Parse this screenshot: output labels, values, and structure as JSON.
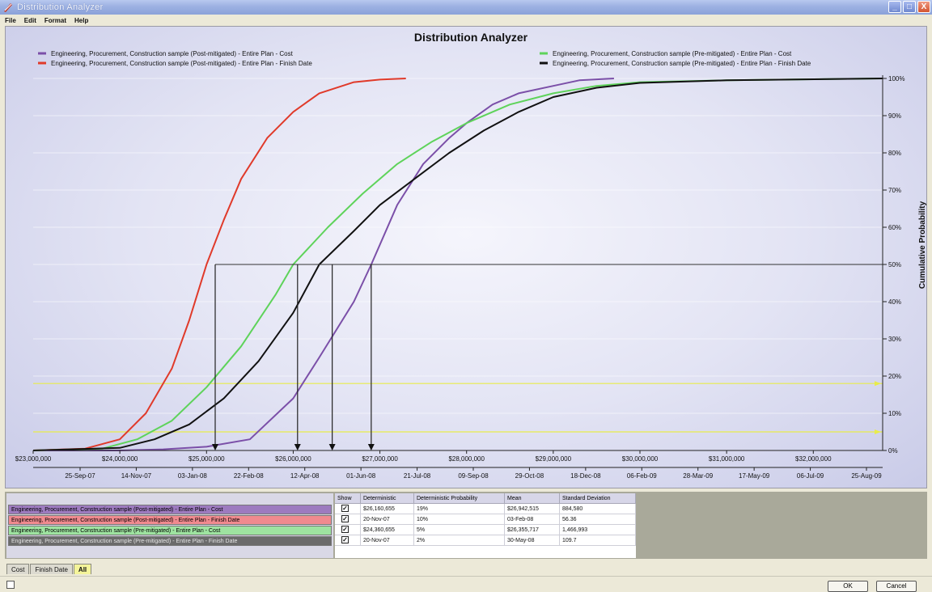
{
  "window": {
    "title": "Distribution Analyzer",
    "buttons": {
      "minimize": "_",
      "maximize": "□",
      "close": "X"
    }
  },
  "menu": [
    "File",
    "Edit",
    "Format",
    "Help"
  ],
  "chart_data": {
    "type": "line",
    "title": "Distribution Analyzer",
    "ylabel": "Cumulative Probability",
    "ylim": [
      0,
      100
    ],
    "y_ticks": [
      "0%",
      "10%",
      "20%",
      "30%",
      "40%",
      "50%",
      "60%",
      "70%",
      "80%",
      "90%",
      "100%"
    ],
    "cost_axis": {
      "range": [
        23000000,
        32800000
      ],
      "ticks": [
        "$23,000,000",
        "$24,000,000",
        "$25,000,000",
        "$26,000,000",
        "$27,000,000",
        "$28,000,000",
        "$29,000,000",
        "$30,000,000",
        "$31,000,000",
        "$32,000,000"
      ]
    },
    "date_axis": {
      "ticks": [
        "25-Sep-07",
        "14-Nov-07",
        "03-Jan-08",
        "22-Feb-08",
        "12-Apr-08",
        "01-Jun-08",
        "21-Jul-08",
        "09-Sep-08",
        "29-Oct-08",
        "18-Dec-08",
        "06-Feb-09",
        "28-Mar-09",
        "17-May-09",
        "06-Jul-09",
        "25-Aug-09"
      ]
    },
    "legend_position": "top",
    "series": [
      {
        "name": "Engineering, Procurement, Construction sample (Post-mitigated) - Entire Plan - Cost",
        "color": "#7b4fa8",
        "x": [
          23000000,
          24000000,
          24500000,
          25000000,
          25500000,
          26000000,
          26300000,
          26700000,
          26900000,
          27200000,
          27500000,
          27800000,
          28000000,
          28300000,
          28600000,
          29000000,
          29300000,
          29700000
        ],
        "y": [
          0,
          0,
          0.3,
          1,
          3,
          14,
          25,
          40,
          50,
          66,
          77,
          84,
          88,
          93,
          96,
          98,
          99.5,
          100
        ]
      },
      {
        "name": "Engineering, Procurement, Construction sample (Post-mitigated) - Entire Plan - Finish Date",
        "color": "#e03a2a",
        "x": [
          23000000,
          23600000,
          24000000,
          24300000,
          24600000,
          24800000,
          25000000,
          25200000,
          25400000,
          25700000,
          26000000,
          26300000,
          26700000,
          27000000,
          27300000
        ],
        "y": [
          0,
          0.5,
          3,
          10,
          22,
          35,
          50,
          62,
          73,
          84,
          91,
          96,
          99,
          99.7,
          100
        ]
      },
      {
        "name": "Engineering, Procurement, Construction sample (Pre-mitigated) - Entire Plan - Cost",
        "color": "#5ed35a",
        "x": [
          23000000,
          23800000,
          24200000,
          24600000,
          25000000,
          25400000,
          25800000,
          26000000,
          26400000,
          26800000,
          27200000,
          27600000,
          28000000,
          28500000,
          29000000,
          29500000,
          30000000,
          31000000,
          32800000
        ],
        "y": [
          0,
          0.5,
          3,
          8,
          17,
          28,
          42,
          50,
          60,
          69,
          77,
          83,
          88,
          93,
          96,
          98,
          99,
          99.5,
          100
        ]
      },
      {
        "name": "Engineering, Procurement, Construction sample (Pre-mitigated) - Entire Plan - Finish Date",
        "color": "#111111",
        "x": [
          23000000,
          24000000,
          24400000,
          24800000,
          25200000,
          25600000,
          26000000,
          26300000,
          26700000,
          27000000,
          27400000,
          27800000,
          28200000,
          28600000,
          29000000,
          29500000,
          30000000,
          31000000,
          32800000
        ],
        "y": [
          0,
          0.7,
          3,
          7,
          14,
          24,
          37,
          50,
          59,
          66,
          73,
          80,
          86,
          91,
          95,
          97.5,
          98.8,
          99.5,
          100
        ]
      }
    ],
    "reference_lines": {
      "percentile": 50,
      "drop_x": [
        25100000,
        26050000,
        26450000,
        26900000
      ],
      "guide_levels": [
        5,
        18
      ]
    }
  },
  "table": {
    "headers": [
      "Show",
      "Deterministic",
      "Deterministic Probability",
      "Mean",
      "Standard Deviation"
    ],
    "rows": [
      {
        "label": "Engineering, Procurement, Construction sample (Post-mitigated) - Entire Plan - Cost",
        "color": "#9d7bbf",
        "show": "✓",
        "deterministic": "$26,160,655",
        "det_probability": "19%",
        "mean": "$26,942,515",
        "std_dev": "884,580"
      },
      {
        "label": "Engineering, Procurement, Construction sample (Post-mitigated) - Entire Plan - Finish Date",
        "color": "#f08a8f",
        "show": "✓",
        "deterministic": "20-Nov-07",
        "det_probability": "10%",
        "mean": "03-Feb-08",
        "std_dev": "56.36"
      },
      {
        "label": "Engineering, Procurement, Construction sample (Pre-mitigated) - Entire Plan - Cost",
        "color": "#9ee3a0",
        "show": "✓",
        "deterministic": "$24,360,655",
        "det_probability": "5%",
        "mean": "$26,355,717",
        "std_dev": "1,466,993"
      },
      {
        "label": "Engineering, Procurement, Construction sample (Pre-mitigated) - Entire Plan - Finish Date",
        "color": "#6b6b6b",
        "show": "✓",
        "deterministic": "20-Nov-07",
        "det_probability": "2%",
        "mean": "30-May-08",
        "std_dev": "109.7"
      }
    ]
  },
  "tabs": [
    {
      "label": "Cost",
      "active": false
    },
    {
      "label": "Finish Date",
      "active": false
    },
    {
      "label": "All",
      "active": true
    }
  ],
  "footer": {
    "ok_label": "OK",
    "cancel_label": "Cancel"
  }
}
